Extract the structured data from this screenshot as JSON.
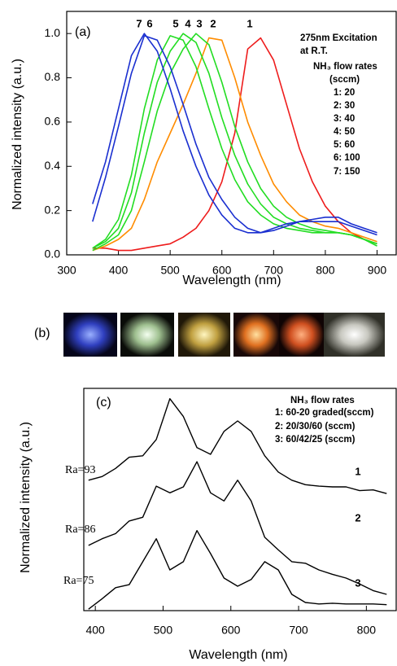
{
  "chart_data": [
    {
      "type": "line",
      "panel_label": "(a)",
      "x_label": "Wavelength (nm)",
      "y_label": "Normalized intensity  (a.u.)",
      "annotations": [
        "275nm Excitation",
        "at R.T.",
        "NH₃ flow rates",
        "(sccm)",
        "1: 20",
        "2: 30",
        "3: 40",
        "4: 50",
        "5: 60",
        "6: 100",
        "7: 150"
      ],
      "x": [
        350,
        375,
        400,
        425,
        450,
        475,
        500,
        525,
        550,
        575,
        600,
        625,
        650,
        675,
        700,
        725,
        750,
        775,
        800,
        825,
        850,
        875,
        900
      ],
      "series": [
        {
          "name": "1",
          "color": "#ee1c1c",
          "values": [
            0.03,
            0.03,
            0.02,
            0.02,
            0.03,
            0.04,
            0.05,
            0.08,
            0.12,
            0.2,
            0.33,
            0.55,
            0.93,
            0.98,
            0.88,
            0.68,
            0.48,
            0.33,
            0.22,
            0.15,
            0.1,
            0.07,
            0.05
          ]
        },
        {
          "name": "2",
          "color": "#ff8c00",
          "values": [
            0.02,
            0.04,
            0.07,
            0.12,
            0.25,
            0.42,
            0.55,
            0.68,
            0.82,
            0.98,
            0.97,
            0.8,
            0.6,
            0.45,
            0.32,
            0.24,
            0.18,
            0.15,
            0.13,
            0.12,
            0.1,
            0.08,
            0.06
          ]
        },
        {
          "name": "3",
          "color": "#22dd22",
          "values": [
            0.02,
            0.05,
            0.09,
            0.2,
            0.42,
            0.65,
            0.82,
            0.93,
            1.0,
            0.95,
            0.78,
            0.58,
            0.42,
            0.3,
            0.22,
            0.17,
            0.14,
            0.12,
            0.11,
            0.1,
            0.09,
            0.07,
            0.05
          ]
        },
        {
          "name": "4",
          "color": "#22dd22",
          "values": [
            0.03,
            0.06,
            0.12,
            0.28,
            0.55,
            0.78,
            0.92,
            1.0,
            0.96,
            0.82,
            0.62,
            0.45,
            0.32,
            0.23,
            0.17,
            0.14,
            0.12,
            0.11,
            0.1,
            0.1,
            0.09,
            0.07,
            0.05
          ]
        },
        {
          "name": "5",
          "color": "#22dd22",
          "values": [
            0.03,
            0.07,
            0.16,
            0.36,
            0.66,
            0.88,
            0.99,
            0.97,
            0.85,
            0.66,
            0.48,
            0.34,
            0.24,
            0.18,
            0.14,
            0.12,
            0.11,
            0.1,
            0.1,
            0.1,
            0.09,
            0.07,
            0.04
          ]
        },
        {
          "name": "6",
          "color": "#1a2fd0",
          "values": [
            0.15,
            0.35,
            0.58,
            0.82,
            0.99,
            0.97,
            0.85,
            0.68,
            0.5,
            0.35,
            0.25,
            0.17,
            0.12,
            0.1,
            0.11,
            0.13,
            0.15,
            0.16,
            0.17,
            0.17,
            0.14,
            0.12,
            0.1
          ]
        },
        {
          "name": "7",
          "color": "#1a2fd0",
          "values": [
            0.23,
            0.42,
            0.66,
            0.9,
            1.0,
            0.92,
            0.75,
            0.56,
            0.4,
            0.27,
            0.18,
            0.12,
            0.1,
            0.1,
            0.12,
            0.14,
            0.15,
            0.15,
            0.15,
            0.15,
            0.13,
            0.11,
            0.09
          ]
        }
      ],
      "xlim": [
        300,
        937
      ],
      "ylim": [
        0,
        1.1
      ],
      "xticks": [
        300,
        400,
        500,
        600,
        700,
        800,
        900
      ],
      "yticks": [
        {
          "value": 0,
          "label": "0.0"
        },
        {
          "value": 0.2,
          "label": "0.2"
        },
        {
          "value": 0.4,
          "label": "0.4"
        },
        {
          "value": 0.6,
          "label": "0.6"
        },
        {
          "value": 0.8,
          "label": "0.8"
        },
        {
          "value": 1,
          "label": "1.0"
        }
      ]
    },
    {
      "type": "line",
      "panel_label": "(c)",
      "x_label": "Wavelength (nm)",
      "y_label": "Normalized intensity  (a.u.)",
      "annotations": [
        "NH₃ flow rates",
        "1: 60-20 graded(sccm)",
        "2: 20/30/60 (sccm)",
        "3: 60/42/25 (sccm)"
      ],
      "x": [
        390,
        410,
        430,
        450,
        470,
        490,
        510,
        530,
        550,
        570,
        590,
        610,
        630,
        650,
        670,
        690,
        710,
        730,
        750,
        770,
        790,
        810,
        830
      ],
      "series": [
        {
          "name": "1",
          "label": "Ra=93",
          "color": "#000000",
          "values": [
            1.76,
            1.81,
            1.92,
            2.07,
            2.09,
            2.31,
            2.86,
            2.62,
            2.2,
            2.11,
            2.42,
            2.56,
            2.42,
            2.09,
            1.87,
            1.76,
            1.7,
            1.68,
            1.67,
            1.67,
            1.62,
            1.63,
            1.58
          ]
        },
        {
          "name": "2",
          "label": "Ra=86",
          "color": "#000000",
          "values": [
            0.88,
            0.97,
            1.04,
            1.21,
            1.26,
            1.68,
            1.59,
            1.67,
            2.01,
            1.59,
            1.48,
            1.76,
            1.48,
            0.99,
            0.82,
            0.66,
            0.64,
            0.55,
            0.49,
            0.44,
            0.36,
            0.27,
            0.22
          ]
        },
        {
          "name": "3",
          "label": "Ra=75",
          "color": "#000000",
          "values": [
            0.02,
            0.16,
            0.31,
            0.35,
            0.66,
            0.97,
            0.55,
            0.66,
            1.08,
            0.77,
            0.44,
            0.33,
            0.42,
            0.66,
            0.55,
            0.22,
            0.11,
            0.09,
            0.1,
            0.09,
            0.09,
            0.09,
            0.08
          ]
        }
      ],
      "xlim": [
        383,
        844
      ],
      "ylim": [
        0,
        3
      ],
      "xticks": [
        400,
        500,
        600,
        700,
        800
      ]
    }
  ],
  "photo_panel": {
    "label": "(b)"
  }
}
